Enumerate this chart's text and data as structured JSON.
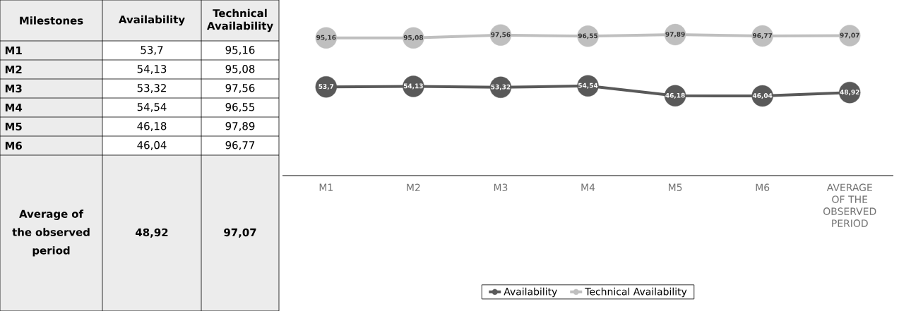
{
  "chart_data": {
    "type": "line",
    "categories": [
      "M1",
      "M2",
      "M3",
      "M4",
      "M5",
      "M6",
      "AVERAGE OF THE OBSERVED PERIOD"
    ],
    "series": [
      {
        "name": "Availability",
        "color": "#595959",
        "values": [
          53.7,
          54.13,
          53.32,
          54.54,
          46.18,
          46.04,
          48.92
        ],
        "value_labels": [
          "53,7",
          "54,13",
          "53,32",
          "54,54",
          "46,18",
          "46,04",
          "48,92"
        ]
      },
      {
        "name": "Technical Availability",
        "color": "#bfbfbf",
        "values": [
          95.16,
          95.08,
          97.56,
          96.55,
          97.89,
          96.77,
          97.07
        ],
        "value_labels": [
          "95,16",
          "95,08",
          "97,56",
          "96,55",
          "97,89",
          "96,77",
          "97,07"
        ]
      }
    ],
    "tick_labels": "x",
    "legend": "bottom",
    "marker": "circle",
    "annotations": [
      "Milestones",
      "Average of the observed period"
    ]
  }
}
